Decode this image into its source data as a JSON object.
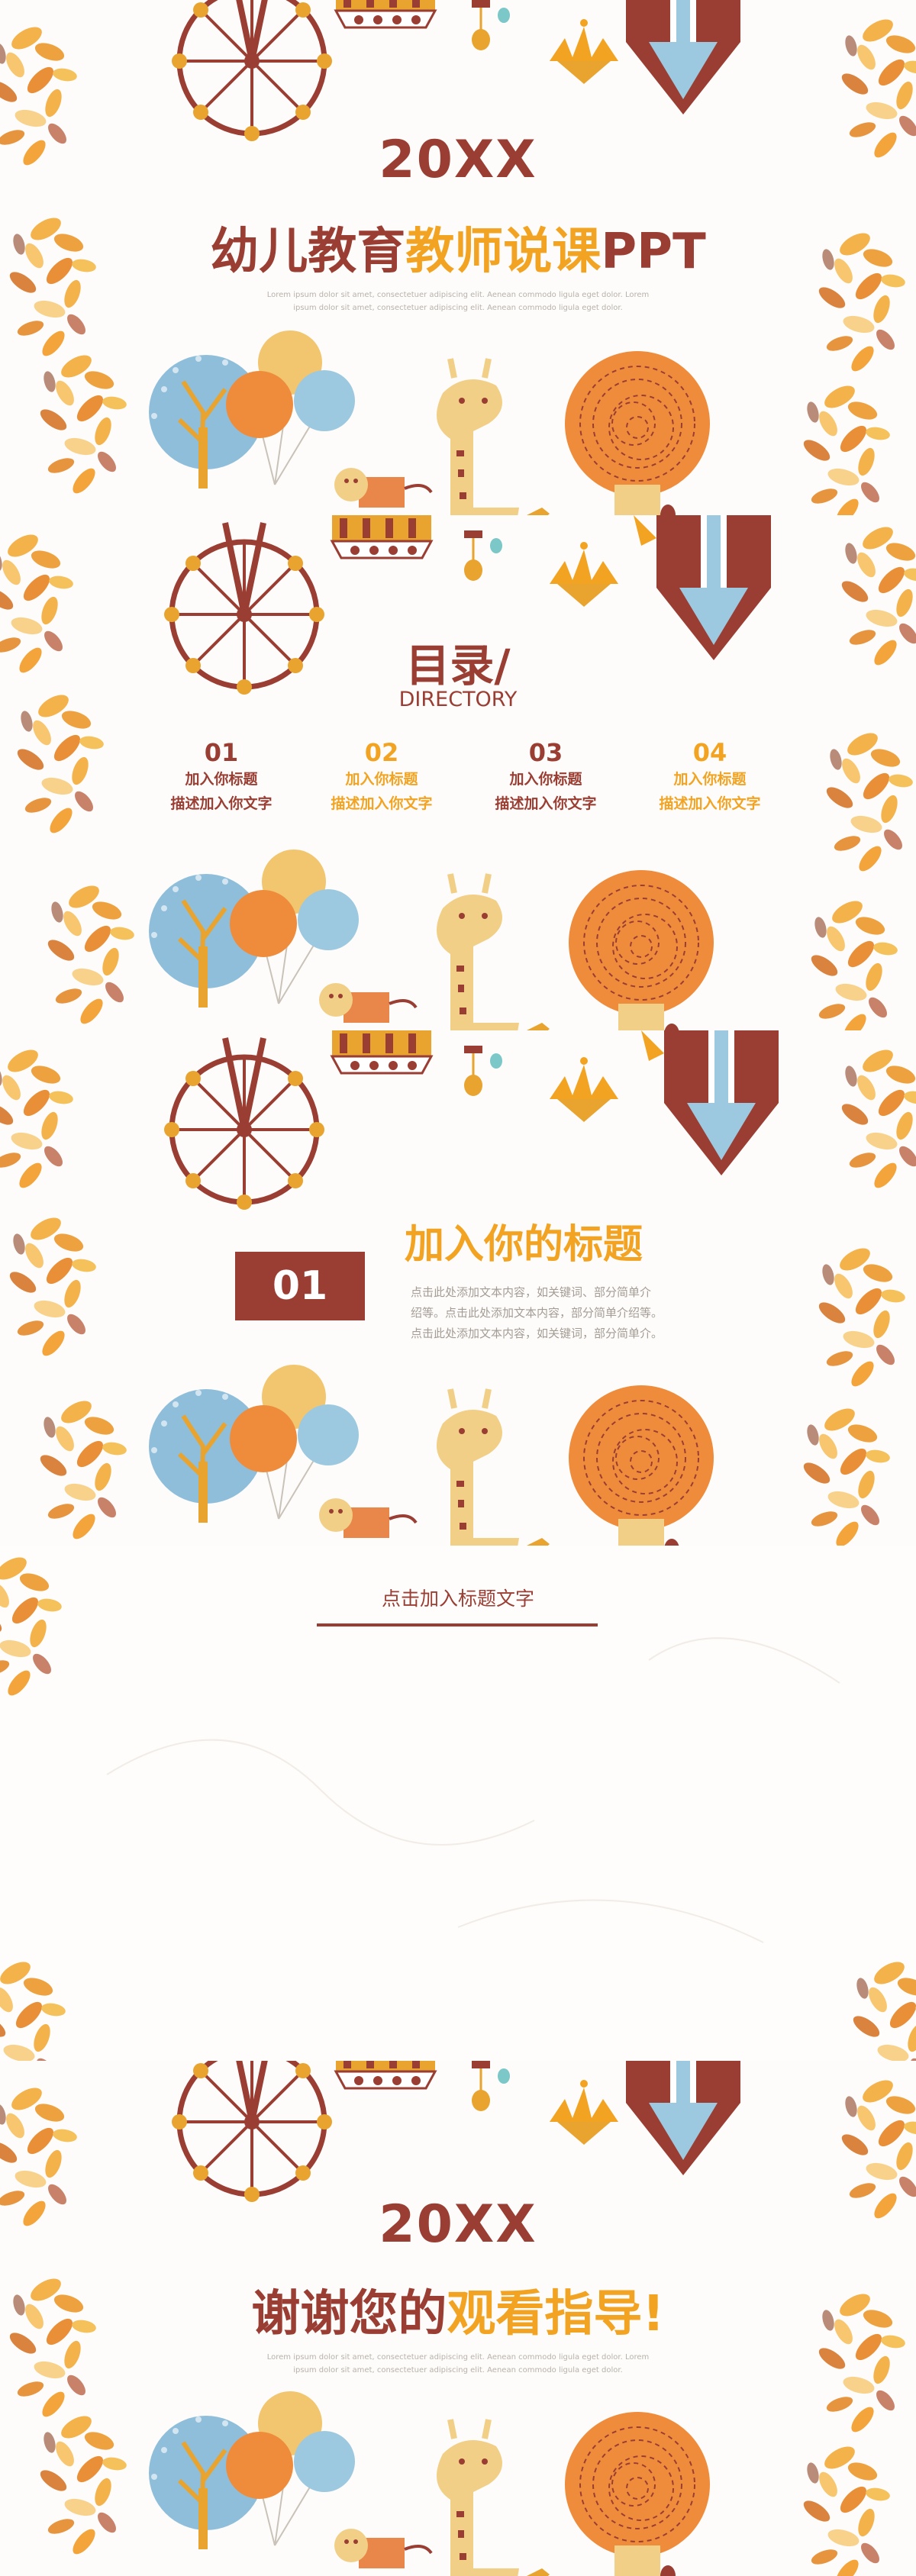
{
  "cover": {
    "year": "20XX",
    "title_part1": "幼儿教育",
    "title_part2": "教师说课",
    "title_part3": "PPT",
    "lorem_line1": "Lorem ipsum dolor sit amet, consectetuer adipiscing elit. Aenean commodo ligula eget dolor.    Lorem",
    "lorem_line2": "ipsum dolor sit amet, consectetuer adipiscing elit. Aenean commodo ligula eget dolor."
  },
  "toc": {
    "title": "目录/",
    "subtitle": "DIRECTORY",
    "items": [
      {
        "num": "01",
        "heading": "加入你标题",
        "desc": "描述加入你文字"
      },
      {
        "num": "02",
        "heading": "加入你标题",
        "desc": "描述加入你文字"
      },
      {
        "num": "03",
        "heading": "加入你标题",
        "desc": "描述加入你文字"
      },
      {
        "num": "04",
        "heading": "加入你标题",
        "desc": "描述加入你文字"
      }
    ]
  },
  "section": {
    "number": "01",
    "title": "加入你的标题",
    "line1": "点击此处添加文本内容，如关键词、部分简单介",
    "line2": "绍等。点击此处添加文本内容，部分简单介绍等。",
    "line3": "点击此处添加文本内容，如关键词，部分简单介。"
  },
  "content": {
    "title": "点击加入标题文字"
  },
  "ending": {
    "year": "20XX",
    "thanks_part1": "谢谢您的",
    "thanks_part2": "观看指导!",
    "lorem_line1": "Lorem ipsum dolor sit amet, consectetuer adipiscing elit. Aenean commodo ligula eget dolor.    Lorem",
    "lorem_line2": "ipsum dolor sit amet, consectetuer adipiscing elit. Aenean commodo ligula eget dolor."
  },
  "colors": {
    "brown": "#9a3d33",
    "orange": "#f3a322",
    "light_blue": "#9cc9e0",
    "leaf_orange": "#f0a544",
    "gray_text": "#a49c94"
  }
}
